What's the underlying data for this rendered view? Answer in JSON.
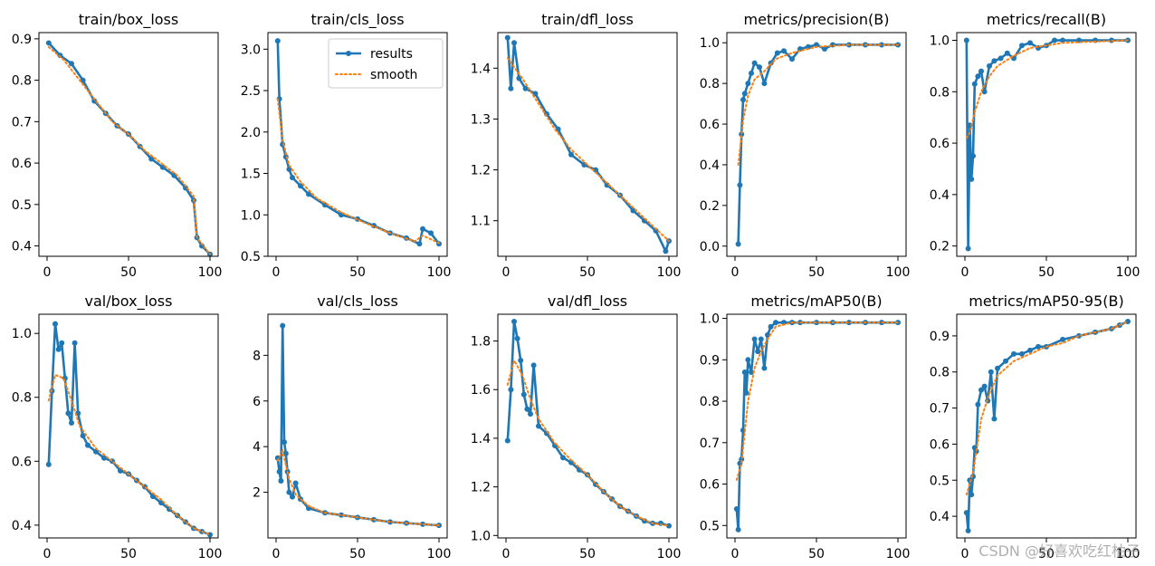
{
  "watermark": "CSDN @好喜欢吃红柚子",
  "colors": {
    "results": "#1f77b4",
    "smooth": "#ff7f0e"
  },
  "legend": {
    "results": "results",
    "smooth": "smooth",
    "location": "upper-right",
    "panel_index": 1
  },
  "chart_data": [
    {
      "type": "line",
      "title": "train/box_loss",
      "xlabel": "",
      "ylabel": "",
      "xlim": [
        -5,
        105
      ],
      "ylim": [
        0.375,
        0.915
      ],
      "xticks": [
        0,
        50,
        100
      ],
      "yticks": [
        0.4,
        0.5,
        0.6,
        0.7,
        0.8,
        0.9
      ],
      "ytick_labels": [
        "0.4",
        "0.5",
        "0.6",
        "0.7",
        "0.8",
        "0.9"
      ],
      "grid": false,
      "series": [
        {
          "name": "results",
          "x": [
            1,
            8,
            15,
            22,
            29,
            36,
            43,
            50,
            57,
            64,
            71,
            78,
            85,
            90,
            92,
            95,
            100
          ],
          "y": [
            0.89,
            0.86,
            0.84,
            0.8,
            0.75,
            0.72,
            0.69,
            0.67,
            0.64,
            0.61,
            0.59,
            0.57,
            0.54,
            0.51,
            0.42,
            0.4,
            0.38
          ]
        },
        {
          "name": "smooth",
          "x": [
            1,
            10,
            20,
            30,
            40,
            50,
            60,
            70,
            80,
            90,
            92,
            100
          ],
          "y": [
            0.88,
            0.85,
            0.8,
            0.75,
            0.7,
            0.67,
            0.63,
            0.6,
            0.57,
            0.52,
            0.42,
            0.38
          ]
        }
      ]
    },
    {
      "type": "line",
      "title": "train/cls_loss",
      "xlabel": "",
      "ylabel": "",
      "xlim": [
        -5,
        105
      ],
      "ylim": [
        0.5,
        3.2
      ],
      "xticks": [
        0,
        50,
        100
      ],
      "yticks": [
        0.5,
        1.0,
        1.5,
        2.0,
        2.5,
        3.0
      ],
      "ytick_labels": [
        "0.5",
        "1.0",
        "1.5",
        "2.0",
        "2.5",
        "3.0"
      ],
      "grid": false,
      "series": [
        {
          "name": "results",
          "x": [
            1,
            2,
            4,
            6,
            8,
            10,
            15,
            20,
            30,
            40,
            50,
            60,
            70,
            80,
            88,
            90,
            95,
            100
          ],
          "y": [
            3.1,
            2.4,
            1.85,
            1.7,
            1.55,
            1.45,
            1.35,
            1.25,
            1.12,
            1.0,
            0.95,
            0.87,
            0.78,
            0.72,
            0.65,
            0.83,
            0.78,
            0.65
          ]
        },
        {
          "name": "smooth",
          "x": [
            1,
            4,
            8,
            15,
            25,
            40,
            55,
            70,
            85,
            90,
            100
          ],
          "y": [
            2.4,
            1.9,
            1.6,
            1.4,
            1.2,
            1.03,
            0.9,
            0.78,
            0.68,
            0.75,
            0.66
          ]
        }
      ]
    },
    {
      "type": "line",
      "title": "train/dfl_loss",
      "xlabel": "",
      "ylabel": "",
      "xlim": [
        -5,
        105
      ],
      "ylim": [
        1.03,
        1.47
      ],
      "xticks": [
        0,
        50,
        100
      ],
      "yticks": [
        1.1,
        1.2,
        1.3,
        1.4
      ],
      "ytick_labels": [
        "1.1",
        "1.2",
        "1.3",
        "1.4"
      ],
      "grid": false,
      "series": [
        {
          "name": "results",
          "x": [
            1,
            3,
            5,
            8,
            12,
            18,
            25,
            32,
            40,
            48,
            55,
            62,
            70,
            78,
            85,
            92,
            98,
            100
          ],
          "y": [
            1.46,
            1.36,
            1.45,
            1.38,
            1.36,
            1.35,
            1.31,
            1.28,
            1.23,
            1.21,
            1.2,
            1.17,
            1.15,
            1.12,
            1.1,
            1.08,
            1.04,
            1.06
          ]
        },
        {
          "name": "smooth",
          "x": [
            1,
            10,
            20,
            30,
            40,
            50,
            60,
            70,
            80,
            90,
            100
          ],
          "y": [
            1.42,
            1.38,
            1.33,
            1.28,
            1.24,
            1.21,
            1.18,
            1.15,
            1.12,
            1.09,
            1.06
          ]
        }
      ]
    },
    {
      "type": "line",
      "title": "metrics/precision(B)",
      "xlabel": "",
      "ylabel": "",
      "xlim": [
        -5,
        105
      ],
      "ylim": [
        -0.05,
        1.05
      ],
      "xticks": [
        0,
        50,
        100
      ],
      "yticks": [
        0.0,
        0.2,
        0.4,
        0.6,
        0.8,
        1.0
      ],
      "ytick_labels": [
        "0.0",
        "0.2",
        "0.4",
        "0.6",
        "0.8",
        "1.0"
      ],
      "grid": false,
      "series": [
        {
          "name": "results",
          "x": [
            2,
            3,
            4,
            5,
            6,
            8,
            10,
            12,
            15,
            18,
            22,
            26,
            30,
            35,
            40,
            45,
            50,
            55,
            60,
            70,
            80,
            90,
            100
          ],
          "y": [
            0.01,
            0.3,
            0.55,
            0.72,
            0.75,
            0.8,
            0.85,
            0.9,
            0.88,
            0.8,
            0.9,
            0.95,
            0.96,
            0.92,
            0.97,
            0.98,
            0.99,
            0.97,
            0.99,
            0.99,
            0.99,
            0.99,
            0.99
          ]
        },
        {
          "name": "smooth",
          "x": [
            2,
            5,
            8,
            12,
            18,
            25,
            35,
            50,
            70,
            100
          ],
          "y": [
            0.4,
            0.62,
            0.74,
            0.82,
            0.86,
            0.92,
            0.95,
            0.98,
            0.99,
            0.99
          ]
        }
      ]
    },
    {
      "type": "line",
      "title": "metrics/recall(B)",
      "xlabel": "",
      "ylabel": "",
      "xlim": [
        -5,
        105
      ],
      "ylim": [
        0.16,
        1.03
      ],
      "xticks": [
        0,
        50,
        100
      ],
      "yticks": [
        0.2,
        0.4,
        0.6,
        0.8,
        1.0
      ],
      "ytick_labels": [
        "0.2",
        "0.4",
        "0.6",
        "0.8",
        "1.0"
      ],
      "grid": false,
      "series": [
        {
          "name": "results",
          "x": [
            1,
            2,
            3,
            4,
            5,
            6,
            8,
            10,
            12,
            15,
            18,
            22,
            26,
            30,
            35,
            40,
            45,
            50,
            55,
            60,
            70,
            80,
            90,
            100
          ],
          "y": [
            1.0,
            0.19,
            0.67,
            0.46,
            0.55,
            0.83,
            0.86,
            0.88,
            0.8,
            0.9,
            0.92,
            0.93,
            0.95,
            0.93,
            0.98,
            0.99,
            0.97,
            0.98,
            1.0,
            1.0,
            1.0,
            1.0,
            1.0,
            1.0
          ]
        },
        {
          "name": "smooth",
          "x": [
            1,
            3,
            6,
            10,
            15,
            20,
            30,
            40,
            50,
            60,
            100
          ],
          "y": [
            0.62,
            0.64,
            0.72,
            0.8,
            0.86,
            0.9,
            0.94,
            0.97,
            0.98,
            0.99,
            1.0
          ]
        }
      ]
    },
    {
      "type": "line",
      "title": "val/box_loss",
      "xlabel": "",
      "ylabel": "",
      "xlim": [
        -5,
        105
      ],
      "ylim": [
        0.36,
        1.06
      ],
      "xticks": [
        0,
        50,
        100
      ],
      "yticks": [
        0.4,
        0.6,
        0.8,
        1.0
      ],
      "ytick_labels": [
        "0.4",
        "0.6",
        "0.8",
        "1.0"
      ],
      "grid": false,
      "series": [
        {
          "name": "results",
          "x": [
            1,
            3,
            5,
            7,
            9,
            11,
            13,
            15,
            17,
            19,
            22,
            25,
            30,
            35,
            40,
            45,
            50,
            55,
            60,
            65,
            70,
            75,
            80,
            85,
            90,
            95,
            100
          ],
          "y": [
            0.59,
            0.82,
            1.03,
            0.95,
            0.97,
            0.86,
            0.75,
            0.72,
            0.97,
            0.75,
            0.68,
            0.65,
            0.63,
            0.61,
            0.6,
            0.57,
            0.56,
            0.54,
            0.52,
            0.49,
            0.47,
            0.45,
            0.43,
            0.41,
            0.39,
            0.38,
            0.37
          ]
        },
        {
          "name": "smooth",
          "x": [
            1,
            5,
            10,
            15,
            20,
            30,
            40,
            50,
            60,
            70,
            80,
            90,
            100
          ],
          "y": [
            0.79,
            0.87,
            0.86,
            0.79,
            0.71,
            0.64,
            0.6,
            0.56,
            0.52,
            0.48,
            0.43,
            0.39,
            0.37
          ]
        }
      ]
    },
    {
      "type": "line",
      "title": "val/cls_loss",
      "xlabel": "",
      "ylabel": "",
      "xlim": [
        -5,
        105
      ],
      "ylim": [
        0.0,
        9.8
      ],
      "xticks": [
        0,
        50,
        100
      ],
      "yticks": [
        2,
        4,
        6,
        8
      ],
      "ytick_labels": [
        "2",
        "4",
        "6",
        "8"
      ],
      "grid": false,
      "series": [
        {
          "name": "results",
          "x": [
            1,
            2,
            3,
            4,
            5,
            6,
            7,
            8,
            10,
            12,
            15,
            20,
            30,
            40,
            50,
            60,
            70,
            80,
            90,
            100
          ],
          "y": [
            3.5,
            2.9,
            2.5,
            9.3,
            4.2,
            3.7,
            2.9,
            2.0,
            1.8,
            2.4,
            1.7,
            1.3,
            1.1,
            1.0,
            0.9,
            0.8,
            0.7,
            0.65,
            0.6,
            0.55
          ]
        },
        {
          "name": "smooth",
          "x": [
            1,
            4,
            8,
            12,
            20,
            30,
            50,
            70,
            100
          ],
          "y": [
            3.4,
            3.8,
            2.6,
            1.9,
            1.4,
            1.1,
            0.9,
            0.7,
            0.55
          ]
        }
      ]
    },
    {
      "type": "line",
      "title": "val/dfl_loss",
      "xlabel": "",
      "ylabel": "",
      "xlim": [
        -5,
        105
      ],
      "ylim": [
        0.99,
        1.91
      ],
      "xticks": [
        0,
        50,
        100
      ],
      "yticks": [
        1.0,
        1.2,
        1.4,
        1.6,
        1.8
      ],
      "ytick_labels": [
        "1.0",
        "1.2",
        "1.4",
        "1.6",
        "1.8"
      ],
      "grid": false,
      "series": [
        {
          "name": "results",
          "x": [
            1,
            3,
            5,
            7,
            9,
            11,
            13,
            15,
            17,
            20,
            25,
            30,
            35,
            40,
            45,
            50,
            55,
            60,
            65,
            70,
            75,
            80,
            85,
            90,
            95,
            100
          ],
          "y": [
            1.39,
            1.6,
            1.88,
            1.81,
            1.72,
            1.58,
            1.52,
            1.5,
            1.7,
            1.45,
            1.42,
            1.37,
            1.32,
            1.3,
            1.27,
            1.25,
            1.21,
            1.18,
            1.15,
            1.12,
            1.1,
            1.08,
            1.06,
            1.05,
            1.05,
            1.04
          ]
        },
        {
          "name": "smooth",
          "x": [
            1,
            5,
            10,
            15,
            20,
            30,
            40,
            50,
            60,
            70,
            80,
            90,
            100
          ],
          "y": [
            1.62,
            1.72,
            1.66,
            1.56,
            1.48,
            1.38,
            1.31,
            1.25,
            1.18,
            1.12,
            1.08,
            1.05,
            1.04
          ]
        }
      ]
    },
    {
      "type": "line",
      "title": "metrics/mAP50(B)",
      "xlabel": "",
      "ylabel": "",
      "xlim": [
        -5,
        105
      ],
      "ylim": [
        0.47,
        1.01
      ],
      "xticks": [
        0,
        50,
        100
      ],
      "yticks": [
        0.5,
        0.6,
        0.7,
        0.8,
        0.9,
        1.0
      ],
      "ytick_labels": [
        "0.5",
        "0.6",
        "0.7",
        "0.8",
        "0.9",
        "1.0"
      ],
      "grid": false,
      "series": [
        {
          "name": "results",
          "x": [
            1,
            2,
            3,
            4,
            5,
            6,
            7,
            8,
            10,
            12,
            14,
            16,
            18,
            20,
            22,
            25,
            30,
            35,
            40,
            50,
            60,
            70,
            80,
            90,
            100
          ],
          "y": [
            0.54,
            0.49,
            0.65,
            0.66,
            0.73,
            0.87,
            0.82,
            0.9,
            0.87,
            0.95,
            0.92,
            0.95,
            0.88,
            0.96,
            0.98,
            0.99,
            0.99,
            0.99,
            0.99,
            0.99,
            0.99,
            0.99,
            0.99,
            0.99,
            0.99
          ]
        },
        {
          "name": "smooth",
          "x": [
            1,
            4,
            8,
            12,
            16,
            20,
            25,
            35,
            50,
            100
          ],
          "y": [
            0.61,
            0.65,
            0.8,
            0.88,
            0.92,
            0.95,
            0.98,
            0.99,
            0.99,
            0.99
          ]
        }
      ]
    },
    {
      "type": "line",
      "title": "metrics/mAP50-95(B)",
      "xlabel": "",
      "ylabel": "",
      "xlim": [
        -5,
        105
      ],
      "ylim": [
        0.34,
        0.96
      ],
      "xticks": [
        0,
        50,
        100
      ],
      "yticks": [
        0.4,
        0.5,
        0.6,
        0.7,
        0.8,
        0.9
      ],
      "ytick_labels": [
        "0.4",
        "0.5",
        "0.6",
        "0.7",
        "0.8",
        "0.9"
      ],
      "grid": false,
      "series": [
        {
          "name": "results",
          "x": [
            1,
            2,
            3,
            4,
            5,
            6,
            7,
            8,
            10,
            12,
            14,
            16,
            18,
            20,
            25,
            30,
            35,
            40,
            45,
            50,
            60,
            70,
            80,
            90,
            95,
            100
          ],
          "y": [
            0.41,
            0.36,
            0.5,
            0.46,
            0.51,
            0.59,
            0.58,
            0.71,
            0.75,
            0.76,
            0.72,
            0.8,
            0.67,
            0.81,
            0.83,
            0.85,
            0.85,
            0.86,
            0.87,
            0.87,
            0.89,
            0.9,
            0.91,
            0.92,
            0.93,
            0.94
          ]
        },
        {
          "name": "smooth",
          "x": [
            1,
            5,
            10,
            15,
            20,
            30,
            40,
            50,
            60,
            70,
            80,
            90,
            100
          ],
          "y": [
            0.46,
            0.52,
            0.67,
            0.74,
            0.79,
            0.83,
            0.85,
            0.87,
            0.88,
            0.9,
            0.91,
            0.92,
            0.94
          ]
        }
      ]
    }
  ]
}
